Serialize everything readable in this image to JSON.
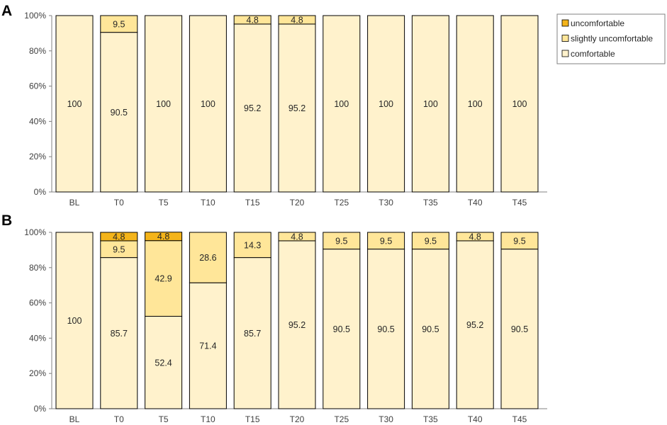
{
  "colors": {
    "comfortable": "#FFF2CC",
    "slightly_uncomfortable": "#FFE699",
    "uncomfortable": "#F4B41A",
    "axis": "#808080",
    "outline": "#000000"
  },
  "legend": {
    "items": [
      {
        "key": "uncomfortable",
        "label": "uncomfortable"
      },
      {
        "key": "slightly_uncomfortable",
        "label": "slightly uncomfortable"
      },
      {
        "key": "comfortable",
        "label": "comfortable"
      }
    ]
  },
  "chart_data": [
    {
      "panel": "A",
      "type": "bar",
      "stacked": true,
      "categories": [
        "BL",
        "T0",
        "T5",
        "T10",
        "T15",
        "T20",
        "T25",
        "T30",
        "T35",
        "T40",
        "T45"
      ],
      "series": [
        {
          "name": "comfortable",
          "values": [
            100,
            90.5,
            100,
            100,
            95.2,
            95.2,
            100,
            100,
            100,
            100,
            100
          ]
        },
        {
          "name": "slightly uncomfortable",
          "values": [
            0,
            9.5,
            0,
            0,
            4.8,
            4.8,
            0,
            0,
            0,
            0,
            0
          ]
        },
        {
          "name": "uncomfortable",
          "values": [
            0,
            0,
            0,
            0,
            0,
            0,
            0,
            0,
            0,
            0,
            0
          ]
        }
      ],
      "yticks": [
        "0%",
        "20%",
        "40%",
        "60%",
        "80%",
        "100%"
      ],
      "ylim": [
        0,
        100
      ]
    },
    {
      "panel": "B",
      "type": "bar",
      "stacked": true,
      "categories": [
        "BL",
        "T0",
        "T5",
        "T10",
        "T15",
        "T20",
        "T25",
        "T30",
        "T35",
        "T40",
        "T45"
      ],
      "series": [
        {
          "name": "comfortable",
          "values": [
            100,
            85.7,
            52.4,
            71.4,
            85.7,
            95.2,
            90.5,
            90.5,
            90.5,
            95.2,
            90.5
          ]
        },
        {
          "name": "slightly uncomfortable",
          "values": [
            0,
            9.5,
            42.9,
            28.6,
            14.3,
            4.8,
            9.5,
            9.5,
            9.5,
            4.8,
            9.5
          ]
        },
        {
          "name": "uncomfortable",
          "values": [
            0,
            4.8,
            4.8,
            0,
            0,
            0,
            0,
            0,
            0,
            0,
            0
          ]
        }
      ],
      "yticks": [
        "0%",
        "20%",
        "40%",
        "60%",
        "80%",
        "100%"
      ],
      "ylim": [
        0,
        100
      ]
    }
  ]
}
